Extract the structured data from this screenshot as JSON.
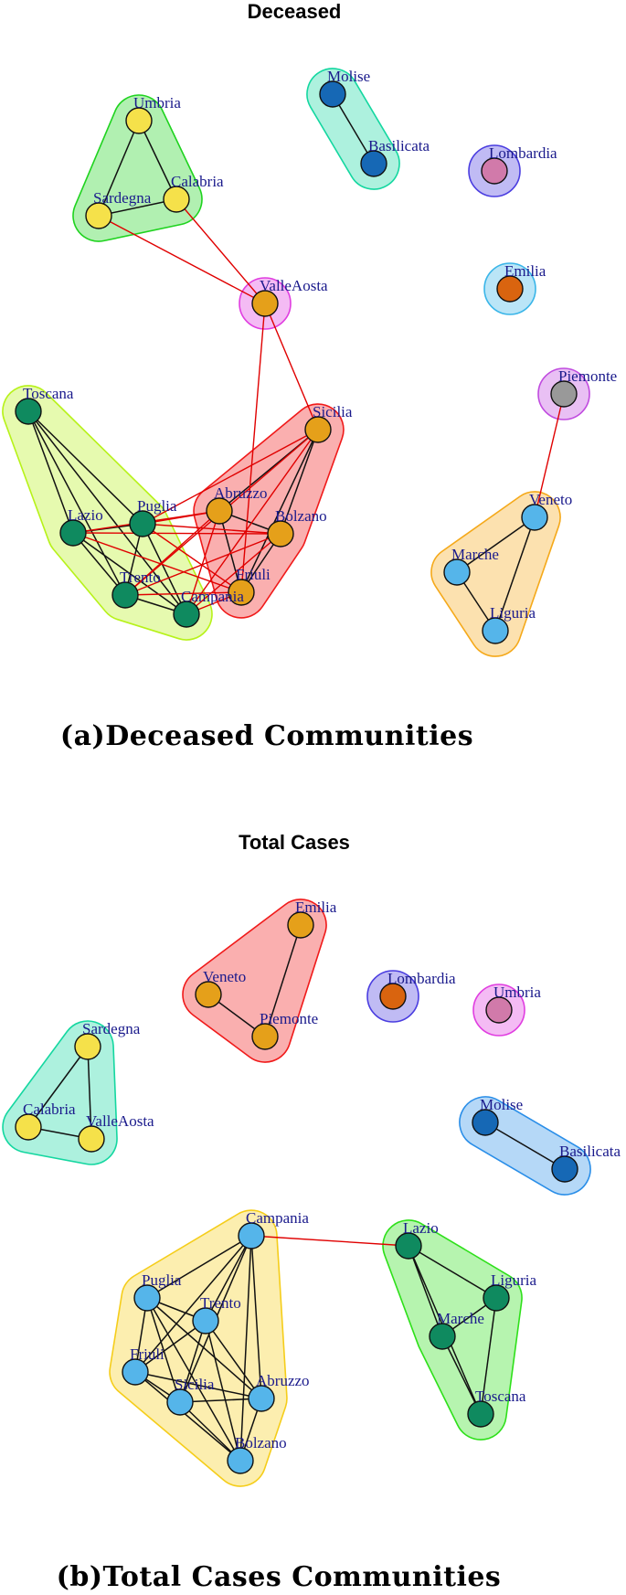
{
  "panels": [
    {
      "title": "Deceased",
      "caption": "(a)Deceased Communities",
      "communities": [
        {
          "members": [
            "Umbria",
            "Sardegna",
            "Calabria"
          ],
          "color": "#1fd31f",
          "node_color": "#f5e14a"
        },
        {
          "members": [
            "Molise",
            "Basilicata"
          ],
          "color": "#14d7a0",
          "node_color": "#1668b5"
        },
        {
          "members": [
            "Lombardia"
          ],
          "color": "#4a3de0",
          "node_color": "#d17aaa"
        },
        {
          "members": [
            "Emilia"
          ],
          "color": "#39b5e8",
          "node_color": "#d9640f"
        },
        {
          "members": [
            "ValleAosta"
          ],
          "color": "#e03de0",
          "node_color": "#e5a01a"
        },
        {
          "members": [
            "Piemonte"
          ],
          "color": "#c04bdf",
          "node_color": "#999999"
        },
        {
          "members": [
            "Toscana",
            "Lazio",
            "Puglia",
            "Trento",
            "Campania"
          ],
          "color": "#b7f21a",
          "node_color": "#0f8a5f"
        },
        {
          "members": [
            "Abruzzo",
            "Sicilia",
            "Bolzano",
            "Friuli"
          ],
          "color": "#f01a1a",
          "node_color": "#e5a01a"
        },
        {
          "members": [
            "Veneto",
            "Marche",
            "Liguria"
          ],
          "color": "#f5a91a",
          "node_color": "#55b5ea"
        }
      ],
      "nodes": [
        {
          "id": "Umbria",
          "label": "Umbria"
        },
        {
          "id": "Sardegna",
          "label": "Sardegna"
        },
        {
          "id": "Calabria",
          "label": "Calabria"
        },
        {
          "id": "Molise",
          "label": "Molise"
        },
        {
          "id": "Basilicata",
          "label": "Basilicata"
        },
        {
          "id": "Lombardia",
          "label": "Lombardia"
        },
        {
          "id": "Emilia",
          "label": "Emilia"
        },
        {
          "id": "ValleAosta",
          "label": "ValleAosta"
        },
        {
          "id": "Piemonte",
          "label": "Piemonte"
        },
        {
          "id": "Toscana",
          "label": "Toscana"
        },
        {
          "id": "Sicilia",
          "label": "Sicilia"
        },
        {
          "id": "Abruzzo",
          "label": "Abruzzo"
        },
        {
          "id": "Puglia",
          "label": "Puglia"
        },
        {
          "id": "Lazio",
          "label": "Lazio"
        },
        {
          "id": "Bolzano",
          "label": "Bolzano"
        },
        {
          "id": "Veneto",
          "label": "Veneto"
        },
        {
          "id": "Marche",
          "label": "Marche"
        },
        {
          "id": "Trento",
          "label": "Trento"
        },
        {
          "id": "Friuli",
          "label": "Friuli"
        },
        {
          "id": "Campania",
          "label": "Campania"
        },
        {
          "id": "Liguria",
          "label": "Liguria"
        }
      ],
      "edges": [
        [
          "Umbria",
          "Sardegna",
          "intra"
        ],
        [
          "Umbria",
          "Calabria",
          "intra"
        ],
        [
          "Sardegna",
          "Calabria",
          "intra"
        ],
        [
          "Molise",
          "Basilicata",
          "intra"
        ],
        [
          "Sardegna",
          "ValleAosta",
          "inter"
        ],
        [
          "Calabria",
          "ValleAosta",
          "inter"
        ],
        [
          "ValleAosta",
          "Sicilia",
          "inter"
        ],
        [
          "ValleAosta",
          "Friuli",
          "inter"
        ],
        [
          "Piemonte",
          "Veneto",
          "inter"
        ],
        [
          "Veneto",
          "Marche",
          "intra"
        ],
        [
          "Veneto",
          "Liguria",
          "intra"
        ],
        [
          "Marche",
          "Liguria",
          "intra"
        ],
        [
          "Toscana",
          "Lazio",
          "intra"
        ],
        [
          "Toscana",
          "Puglia",
          "intra"
        ],
        [
          "Toscana",
          "Trento",
          "intra"
        ],
        [
          "Toscana",
          "Campania",
          "intra"
        ],
        [
          "Lazio",
          "Puglia",
          "intra"
        ],
        [
          "Lazio",
          "Trento",
          "intra"
        ],
        [
          "Lazio",
          "Campania",
          "intra"
        ],
        [
          "Puglia",
          "Trento",
          "intra"
        ],
        [
          "Puglia",
          "Campania",
          "intra"
        ],
        [
          "Trento",
          "Campania",
          "intra"
        ],
        [
          "Abruzzo",
          "Sicilia",
          "intra"
        ],
        [
          "Abruzzo",
          "Bolzano",
          "intra"
        ],
        [
          "Abruzzo",
          "Friuli",
          "intra"
        ],
        [
          "Sicilia",
          "Bolzano",
          "intra"
        ],
        [
          "Sicilia",
          "Friuli",
          "intra"
        ],
        [
          "Bolzano",
          "Friuli",
          "intra"
        ],
        [
          "Lazio",
          "Abruzzo",
          "inter"
        ],
        [
          "Lazio",
          "Bolzano",
          "inter"
        ],
        [
          "Lazio",
          "Friuli",
          "inter"
        ],
        [
          "Puglia",
          "Abruzzo",
          "inter"
        ],
        [
          "Puglia",
          "Bolzano",
          "inter"
        ],
        [
          "Puglia",
          "Friuli",
          "inter"
        ],
        [
          "Puglia",
          "Sicilia",
          "inter"
        ],
        [
          "Trento",
          "Abruzzo",
          "inter"
        ],
        [
          "Trento",
          "Bolzano",
          "inter"
        ],
        [
          "Trento",
          "Friuli",
          "inter"
        ],
        [
          "Trento",
          "Sicilia",
          "inter"
        ],
        [
          "Campania",
          "Abruzzo",
          "inter"
        ],
        [
          "Campania",
          "Bolzano",
          "inter"
        ],
        [
          "Campania",
          "Friuli",
          "inter"
        ],
        [
          "Campania",
          "Sicilia",
          "inter"
        ]
      ]
    },
    {
      "title": "Total Cases",
      "caption": "(b)Total Cases Communities",
      "communities": [
        {
          "members": [
            "Emilia",
            "Veneto",
            "Piemonte"
          ],
          "color": "#f01a1a",
          "node_color": "#e5a01a"
        },
        {
          "members": [
            "Lombardia"
          ],
          "color": "#4a3de0",
          "node_color": "#d9640f"
        },
        {
          "members": [
            "Umbria"
          ],
          "color": "#e03de0",
          "node_color": "#d17aaa"
        },
        {
          "members": [
            "Sardegna",
            "Calabria",
            "ValleAosta"
          ],
          "color": "#14d7a0",
          "node_color": "#f5e14a"
        },
        {
          "members": [
            "Molise",
            "Basilicata"
          ],
          "color": "#2a8ee8",
          "node_color": "#1668b5"
        },
        {
          "members": [
            "Campania",
            "Puglia",
            "Trento",
            "Friuli",
            "Sicilia",
            "Abruzzo",
            "Bolzano"
          ],
          "color": "#f5cd1a",
          "node_color": "#55b5ea"
        },
        {
          "members": [
            "Lazio",
            "Liguria",
            "Marche",
            "Toscana"
          ],
          "color": "#2ee01a",
          "node_color": "#0f8a5f"
        }
      ],
      "nodes": [
        {
          "id": "Emilia",
          "label": "Emilia"
        },
        {
          "id": "Veneto",
          "label": "Veneto"
        },
        {
          "id": "Lombardia",
          "label": "Lombardia"
        },
        {
          "id": "Umbria",
          "label": "Umbria"
        },
        {
          "id": "Piemonte",
          "label": "Piemonte"
        },
        {
          "id": "Sardegna",
          "label": "Sardegna"
        },
        {
          "id": "Calabria",
          "label": "Calabria"
        },
        {
          "id": "ValleAosta",
          "label": "ValleAosta"
        },
        {
          "id": "Molise",
          "label": "Molise"
        },
        {
          "id": "Basilicata",
          "label": "Basilicata"
        },
        {
          "id": "Campania",
          "label": "Campania"
        },
        {
          "id": "Lazio",
          "label": "Lazio"
        },
        {
          "id": "Liguria",
          "label": "Liguria"
        },
        {
          "id": "Puglia",
          "label": "Puglia"
        },
        {
          "id": "Trento",
          "label": "Trento"
        },
        {
          "id": "Marche",
          "label": "Marche"
        },
        {
          "id": "Friuli",
          "label": "Friuli"
        },
        {
          "id": "Abruzzo",
          "label": "Abruzzo"
        },
        {
          "id": "Sicilia",
          "label": "Sicilia"
        },
        {
          "id": "Toscana",
          "label": "Toscana"
        },
        {
          "id": "Bolzano",
          "label": "Bolzano"
        }
      ],
      "edges": [
        [
          "Emilia",
          "Piemonte",
          "intra"
        ],
        [
          "Veneto",
          "Piemonte",
          "intra"
        ],
        [
          "Sardegna",
          "Calabria",
          "intra"
        ],
        [
          "Sardegna",
          "ValleAosta",
          "intra"
        ],
        [
          "Calabria",
          "ValleAosta",
          "intra"
        ],
        [
          "Molise",
          "Basilicata",
          "intra"
        ],
        [
          "Campania",
          "Lazio",
          "inter"
        ],
        [
          "Lazio",
          "Liguria",
          "intra"
        ],
        [
          "Lazio",
          "Marche",
          "intra"
        ],
        [
          "Lazio",
          "Toscana",
          "intra"
        ],
        [
          "Liguria",
          "Marche",
          "intra"
        ],
        [
          "Liguria",
          "Toscana",
          "intra"
        ],
        [
          "Marche",
          "Toscana",
          "intra"
        ],
        [
          "Campania",
          "Puglia",
          "intra"
        ],
        [
          "Campania",
          "Trento",
          "intra"
        ],
        [
          "Campania",
          "Friuli",
          "intra"
        ],
        [
          "Campania",
          "Sicilia",
          "intra"
        ],
        [
          "Campania",
          "Abruzzo",
          "intra"
        ],
        [
          "Campania",
          "Bolzano",
          "intra"
        ],
        [
          "Puglia",
          "Trento",
          "intra"
        ],
        [
          "Puglia",
          "Friuli",
          "intra"
        ],
        [
          "Puglia",
          "Sicilia",
          "intra"
        ],
        [
          "Puglia",
          "Abruzzo",
          "intra"
        ],
        [
          "Puglia",
          "Bolzano",
          "intra"
        ],
        [
          "Trento",
          "Friuli",
          "intra"
        ],
        [
          "Trento",
          "Sicilia",
          "intra"
        ],
        [
          "Trento",
          "Abruzzo",
          "intra"
        ],
        [
          "Trento",
          "Bolzano",
          "intra"
        ],
        [
          "Friuli",
          "Sicilia",
          "intra"
        ],
        [
          "Friuli",
          "Abruzzo",
          "intra"
        ],
        [
          "Friuli",
          "Bolzano",
          "intra"
        ],
        [
          "Sicilia",
          "Abruzzo",
          "intra"
        ],
        [
          "Sicilia",
          "Bolzano",
          "intra"
        ],
        [
          "Abruzzo",
          "Bolzano",
          "intra"
        ]
      ]
    }
  ]
}
